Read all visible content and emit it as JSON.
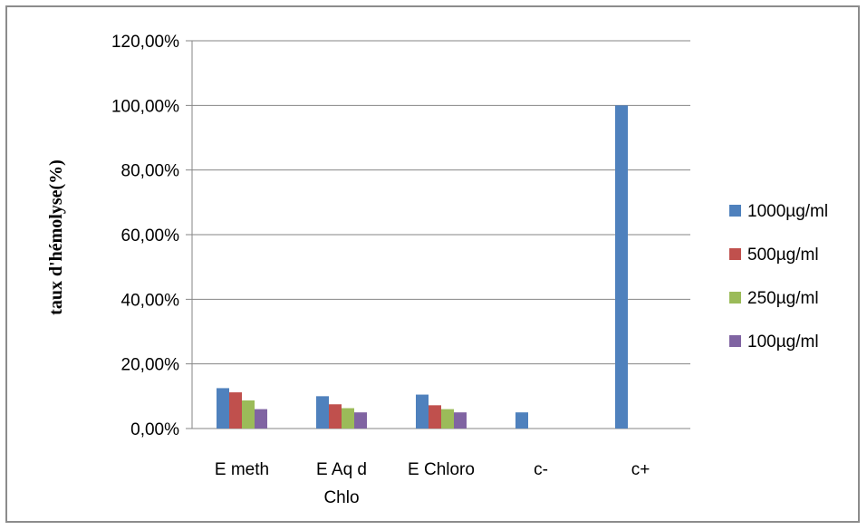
{
  "chart_data": {
    "type": "bar",
    "title": "",
    "xlabel": "",
    "ylabel": "taux d'hémolyse(%)",
    "categories": [
      [
        "E meth"
      ],
      [
        "E Aq d",
        "Chlo"
      ],
      [
        "E Chloro"
      ],
      [
        "c-"
      ],
      [
        "c+"
      ]
    ],
    "ylim": [
      0,
      120
    ],
    "yticks": [
      0,
      20,
      40,
      60,
      80,
      100,
      120
    ],
    "ytick_labels": [
      "0,00%",
      "20,00%",
      "40,00%",
      "60,00%",
      "80,00%",
      "100,00%",
      "120,00%"
    ],
    "grid": true,
    "legend_position": "right",
    "series": [
      {
        "name": "1000µg/ml",
        "color": "#4f81bd",
        "values": [
          12.5,
          10.0,
          10.5,
          5.0,
          100.0
        ]
      },
      {
        "name": "500µg/ml",
        "color": "#c0504d",
        "values": [
          11.2,
          7.5,
          7.2,
          0,
          0
        ]
      },
      {
        "name": "250µg/ml",
        "color": "#9bbb59",
        "values": [
          8.7,
          6.3,
          6.0,
          0,
          0
        ]
      },
      {
        "name": "100µg/ml",
        "color": "#8064a2",
        "values": [
          6.0,
          5.0,
          5.0,
          0,
          0
        ]
      }
    ]
  }
}
